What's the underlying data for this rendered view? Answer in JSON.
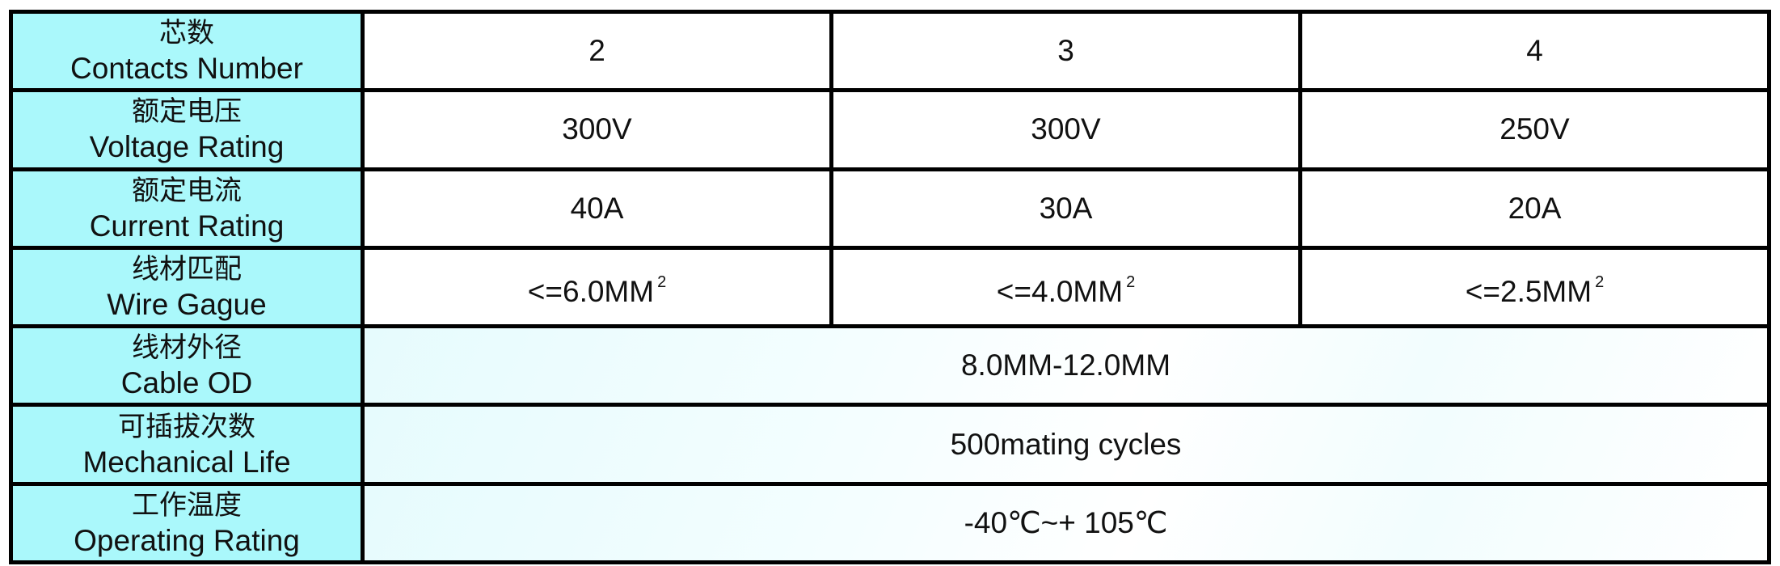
{
  "rows": [
    {
      "cn": "芯数",
      "en": "Contacts Number",
      "values": [
        "2",
        "3",
        "4"
      ]
    },
    {
      "cn": "额定电压",
      "en": "Voltage Rating",
      "values": [
        "300V",
        "300V",
        "250V"
      ]
    },
    {
      "cn": "额定电流",
      "en": "Current Rating",
      "values": [
        "40A",
        "30A",
        "20A"
      ]
    },
    {
      "cn": "线材匹配",
      "en": "Wire Gague",
      "values": [
        "<=6.0MM",
        "<=4.0MM",
        "<=2.5MM"
      ],
      "superscript": "2"
    },
    {
      "cn": "线材外径",
      "en": "Cable OD",
      "value": "8.0MM-12.0MM"
    },
    {
      "cn": "可插拔次数",
      "en": "Mechanical Life",
      "value": "500mating cycles"
    },
    {
      "cn": "工作温度",
      "en": "Operating Rating",
      "value": "-40℃~+ 105℃"
    }
  ],
  "colors": {
    "label_bg": "#aaf8fb",
    "border": "#000000"
  }
}
